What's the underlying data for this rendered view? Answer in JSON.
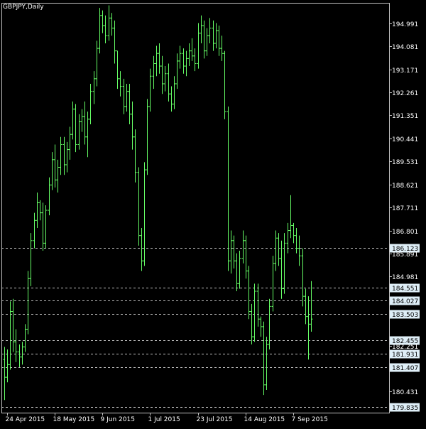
{
  "window": {
    "title": "GBPJPY,Daily"
  },
  "colors": {
    "background": "#000000",
    "bars": "#66ff66",
    "axis": "#c0c0c0",
    "text": "#ffffff",
    "level_line": "#c0c0c0",
    "level_box_fill": "#dfeff8",
    "level_box_text": "#000000"
  },
  "chart_data": {
    "type": "ohlc",
    "symbol": "GBPJPY",
    "timeframe": "Daily",
    "ylim": [
      179.6,
      195.8
    ],
    "price_ticks": [
      "194.991",
      "194.081",
      "193.171",
      "192.261",
      "191.351",
      "190.441",
      "189.531",
      "188.621",
      "187.711",
      "186.801",
      "185.891",
      "184.981",
      "182.251",
      "180.431"
    ],
    "date_ticks": [
      {
        "label": "24 Apr 2015",
        "bar": 1
      },
      {
        "label": "18 May 2015",
        "bar": 17
      },
      {
        "label": "9 Jun 2015",
        "bar": 33
      },
      {
        "label": "1 Jul 2015",
        "bar": 49
      },
      {
        "label": "23 Jul 2015",
        "bar": 65
      },
      {
        "label": "14 Aug 2015",
        "bar": 81
      },
      {
        "label": "7 Sep 2015",
        "bar": 97
      }
    ],
    "levels": [
      "186.123",
      "184.551",
      "184.027",
      "183.503",
      "182.455",
      "181.931",
      "181.407",
      "179.835"
    ],
    "bars": [
      [
        181.7,
        182.2,
        180.1,
        181.0
      ],
      [
        181.0,
        182.1,
        180.8,
        181.5
      ],
      [
        181.5,
        184.0,
        181.3,
        183.6
      ],
      [
        183.6,
        184.1,
        182.0,
        182.4
      ],
      [
        182.4,
        182.9,
        181.6,
        182.0
      ],
      [
        182.0,
        182.3,
        181.4,
        181.8
      ],
      [
        181.8,
        182.4,
        181.5,
        182.2
      ],
      [
        182.2,
        183.1,
        182.0,
        182.9
      ],
      [
        182.9,
        185.2,
        182.7,
        184.9
      ],
      [
        184.9,
        186.7,
        184.6,
        186.4
      ],
      [
        186.4,
        187.5,
        186.1,
        187.2
      ],
      [
        187.2,
        188.3,
        186.9,
        187.9
      ],
      [
        187.9,
        188.0,
        187.2,
        187.5
      ],
      [
        187.5,
        187.9,
        186.0,
        186.3
      ],
      [
        186.3,
        187.8,
        186.1,
        187.6
      ],
      [
        187.6,
        188.9,
        187.4,
        188.6
      ],
      [
        188.6,
        189.9,
        188.4,
        189.6
      ],
      [
        189.6,
        190.2,
        188.5,
        188.8
      ],
      [
        188.8,
        189.6,
        188.3,
        189.3
      ],
      [
        189.3,
        190.5,
        189.0,
        190.2
      ],
      [
        190.2,
        190.5,
        189.0,
        189.4
      ],
      [
        189.4,
        190.3,
        189.1,
        190.0
      ],
      [
        190.0,
        190.9,
        189.6,
        190.6
      ],
      [
        190.6,
        191.9,
        190.4,
        191.6
      ],
      [
        191.6,
        191.8,
        189.9,
        190.2
      ],
      [
        190.2,
        191.4,
        190.0,
        191.1
      ],
      [
        191.1,
        191.6,
        190.7,
        191.3
      ],
      [
        191.3,
        191.9,
        190.2,
        190.5
      ],
      [
        190.5,
        191.5,
        189.7,
        191.2
      ],
      [
        191.2,
        192.6,
        191.0,
        192.3
      ],
      [
        192.3,
        193.1,
        191.8,
        192.8
      ],
      [
        192.8,
        194.3,
        192.5,
        194.0
      ],
      [
        194.0,
        195.6,
        193.8,
        195.3
      ],
      [
        195.3,
        195.5,
        194.6,
        194.9
      ],
      [
        194.9,
        195.3,
        194.2,
        194.5
      ],
      [
        194.5,
        195.7,
        194.3,
        195.2
      ],
      [
        195.2,
        195.4,
        194.5,
        194.8
      ],
      [
        194.8,
        195.1,
        193.4,
        193.9
      ],
      [
        193.9,
        193.9,
        192.4,
        192.8
      ],
      [
        192.8,
        193.1,
        192.1,
        192.5
      ],
      [
        192.5,
        192.8,
        191.4,
        191.7
      ],
      [
        191.7,
        192.6,
        191.5,
        192.3
      ],
      [
        192.3,
        192.6,
        191.0,
        191.4
      ],
      [
        191.4,
        191.9,
        190.0,
        190.5
      ],
      [
        190.5,
        190.8,
        188.7,
        189.1
      ],
      [
        189.1,
        189.3,
        186.2,
        186.6
      ],
      [
        186.6,
        186.9,
        185.2,
        185.6
      ],
      [
        185.6,
        189.5,
        185.4,
        189.2
      ],
      [
        189.2,
        192.0,
        189.0,
        191.7
      ],
      [
        191.7,
        193.2,
        191.5,
        192.9
      ],
      [
        192.9,
        193.7,
        192.4,
        193.4
      ],
      [
        193.4,
        194.1,
        192.9,
        193.8
      ],
      [
        193.8,
        194.2,
        193.0,
        193.3
      ],
      [
        193.3,
        193.7,
        192.2,
        192.6
      ],
      [
        192.6,
        193.3,
        192.3,
        193.0
      ],
      [
        193.0,
        193.4,
        191.9,
        192.2
      ],
      [
        192.2,
        192.5,
        191.5,
        191.8
      ],
      [
        191.8,
        192.9,
        191.6,
        192.6
      ],
      [
        192.6,
        193.8,
        192.4,
        193.5
      ],
      [
        193.5,
        194.1,
        193.2,
        193.8
      ],
      [
        193.8,
        194.0,
        193.0,
        193.3
      ],
      [
        193.3,
        193.9,
        192.9,
        193.6
      ],
      [
        193.6,
        194.2,
        193.3,
        193.9
      ],
      [
        193.9,
        194.4,
        193.5,
        193.7
      ],
      [
        193.7,
        194.0,
        193.1,
        193.4
      ],
      [
        193.4,
        195.0,
        193.2,
        194.6
      ],
      [
        194.6,
        195.3,
        194.2,
        194.9
      ],
      [
        194.9,
        195.1,
        193.6,
        193.9
      ],
      [
        193.9,
        194.8,
        193.7,
        194.5
      ],
      [
        194.5,
        195.2,
        194.2,
        194.8
      ],
      [
        194.8,
        195.1,
        193.9,
        194.2
      ],
      [
        194.2,
        195.0,
        194.0,
        194.7
      ],
      [
        194.7,
        194.9,
        193.7,
        194.0
      ],
      [
        194.0,
        194.5,
        193.5,
        193.8
      ],
      [
        193.8,
        193.9,
        191.2,
        191.5
      ],
      [
        191.5,
        191.7,
        185.2,
        185.6
      ],
      [
        185.6,
        186.8,
        185.1,
        186.4
      ],
      [
        186.4,
        186.6,
        185.3,
        185.6
      ],
      [
        185.6,
        185.9,
        184.4,
        184.7
      ],
      [
        184.7,
        186.0,
        184.5,
        185.7
      ],
      [
        185.7,
        186.8,
        185.5,
        186.4
      ],
      [
        186.4,
        186.6,
        184.9,
        185.2
      ],
      [
        185.2,
        185.4,
        183.3,
        183.6
      ],
      [
        183.6,
        183.9,
        182.3,
        182.6
      ],
      [
        182.6,
        184.7,
        182.4,
        184.4
      ],
      [
        184.4,
        184.7,
        183.0,
        183.3
      ],
      [
        183.3,
        183.4,
        182.6,
        183.0
      ],
      [
        183.0,
        183.2,
        180.3,
        180.7
      ],
      [
        180.7,
        182.6,
        180.5,
        182.3
      ],
      [
        182.3,
        184.1,
        182.1,
        183.8
      ],
      [
        183.8,
        185.8,
        183.6,
        185.5
      ],
      [
        185.5,
        186.8,
        185.2,
        186.5
      ],
      [
        186.5,
        186.7,
        185.4,
        185.7
      ],
      [
        185.7,
        186.4,
        184.1,
        184.5
      ],
      [
        184.5,
        186.7,
        184.3,
        186.3
      ],
      [
        186.3,
        187.1,
        185.9,
        186.8
      ],
      [
        186.8,
        188.2,
        186.5,
        187.0
      ],
      [
        187.0,
        187.1,
        186.3,
        186.6
      ],
      [
        186.6,
        186.9,
        185.9,
        186.1
      ],
      [
        186.1,
        186.6,
        185.4,
        185.8
      ],
      [
        185.8,
        186.1,
        183.8,
        184.2
      ],
      [
        184.2,
        184.5,
        183.1,
        183.4
      ],
      [
        183.4,
        184.2,
        181.7,
        183.1
      ],
      [
        183.1,
        184.8,
        182.8,
        183.3
      ]
    ]
  }
}
